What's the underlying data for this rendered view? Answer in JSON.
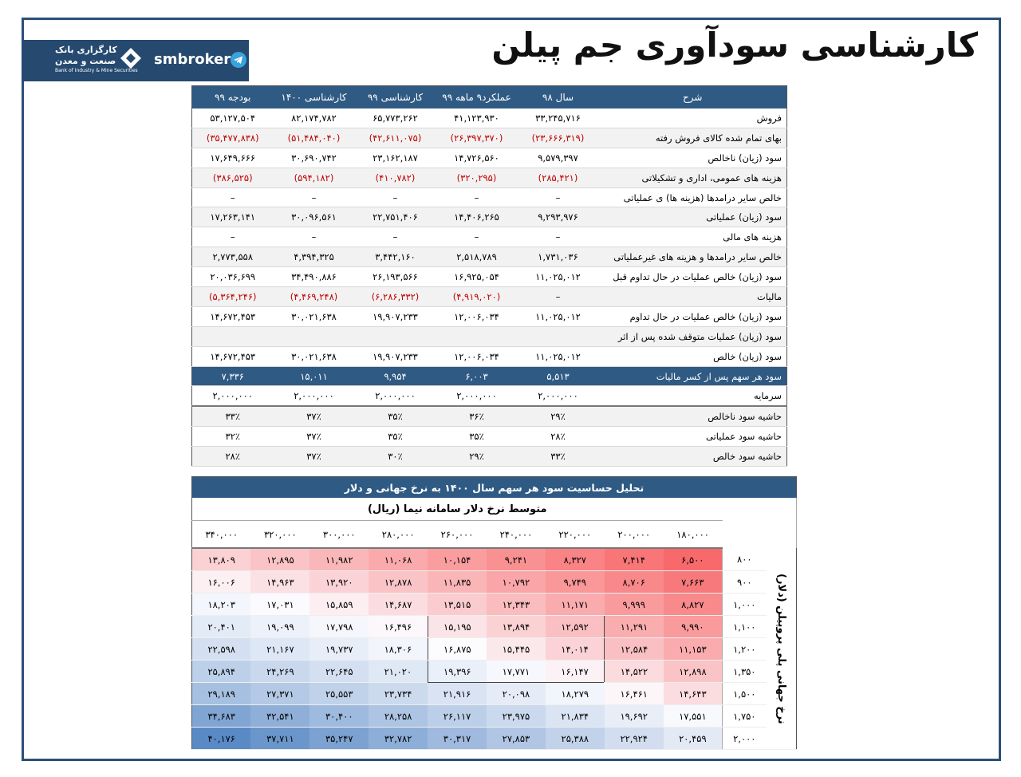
{
  "header": {
    "title": "کارشناسی سودآوری جم پیلن",
    "logo": {
      "brand": "smbroker",
      "name_top": "کارگزاری بانک",
      "name_bottom": "صنعت و معدن",
      "subtitle": "Bank of Industry & Mine Securities"
    }
  },
  "income_table": {
    "columns": [
      "شرح",
      "سال ۹۸",
      "عملکرد۹ ماهه ۹۹",
      "کارشناسی ۹۹",
      "کارشناسی ۱۴۰۰",
      "بودجه ۹۹"
    ],
    "rows": [
      {
        "label": "فروش",
        "values": [
          "۳۳,۲۴۵,۷۱۶",
          "۴۱,۱۲۳,۹۳۰",
          "۶۵,۷۷۳,۲۶۲",
          "۸۲,۱۷۴,۷۸۲",
          "۵۳,۱۲۷,۵۰۴"
        ]
      },
      {
        "label": "بهای تمام شده کالای فروش رفته",
        "values": [
          "(۲۳,۶۶۶,۳۱۹)",
          "(۲۶,۳۹۷,۳۷۰)",
          "(۴۲,۶۱۱,۰۷۵)",
          "(۵۱,۴۸۴,۰۴۰)",
          "(۳۵,۴۷۷,۸۳۸)"
        ]
      },
      {
        "label": "سود (زیان) ناخالص",
        "values": [
          "۹,۵۷۹,۳۹۷",
          "۱۴,۷۲۶,۵۶۰",
          "۲۳,۱۶۲,۱۸۷",
          "۳۰,۶۹۰,۷۴۲",
          "۱۷,۶۴۹,۶۶۶"
        ]
      },
      {
        "label": "هزینه های عمومی، اداری و تشکیلاتی",
        "values": [
          "(۲۸۵,۴۲۱)",
          "(۳۲۰,۲۹۵)",
          "(۴۱۰,۷۸۲)",
          "(۵۹۴,۱۸۲)",
          "(۳۸۶,۵۲۵)"
        ]
      },
      {
        "label": "خالص سایر درامدها (هزینه ها) ی عملیاتی",
        "values": [
          "–",
          "–",
          "–",
          "–",
          "–"
        ]
      },
      {
        "label": "سود (زیان) عملیاتی",
        "values": [
          "۹,۲۹۳,۹۷۶",
          "۱۴,۴۰۶,۲۶۵",
          "۲۲,۷۵۱,۴۰۶",
          "۳۰,۰۹۶,۵۶۱",
          "۱۷,۲۶۳,۱۴۱"
        ]
      },
      {
        "label": "هزینه های مالی",
        "values": [
          "–",
          "–",
          "–",
          "–",
          "–"
        ]
      },
      {
        "label": "خالص سایر درامدها و هزینه های غیرعملیاتی",
        "values": [
          "۱,۷۳۱,۰۳۶",
          "۲,۵۱۸,۷۸۹",
          "۳,۴۴۲,۱۶۰",
          "۴,۳۹۴,۳۲۵",
          "۲,۷۷۳,۵۵۸"
        ]
      },
      {
        "label": "سود (زیان) خالص عملیات در حال تداوم قبل",
        "values": [
          "۱۱,۰۲۵,۰۱۲",
          "۱۶,۹۲۵,۰۵۴",
          "۲۶,۱۹۳,۵۶۶",
          "۳۴,۴۹۰,۸۸۶",
          "۲۰,۰۳۶,۶۹۹"
        ]
      },
      {
        "label": "مالیات",
        "values": [
          "–",
          "(۴,۹۱۹,۰۲۰)",
          "(۶,۲۸۶,۳۳۲)",
          "(۴,۴۶۹,۲۴۸)",
          "(۵,۳۶۴,۲۴۶)"
        ]
      },
      {
        "label": "سود (زیان) خالص عملیات در حال تداوم",
        "values": [
          "۱۱,۰۲۵,۰۱۲",
          "۱۲,۰۰۶,۰۳۴",
          "۱۹,۹۰۷,۲۳۳",
          "۳۰,۰۲۱,۶۳۸",
          "۱۴,۶۷۲,۴۵۳"
        ]
      },
      {
        "label": "سود (زیان) عملیات متوقف شده پس از اثر",
        "values": []
      },
      {
        "label": "سود (زیان) خالص",
        "values": [
          "۱۱,۰۲۵,۰۱۲",
          "۱۲,۰۰۶,۰۳۴",
          "۱۹,۹۰۷,۲۳۳",
          "۳۰,۰۲۱,۶۳۸",
          "۱۴,۶۷۲,۴۵۳"
        ]
      },
      {
        "label": "سود هر سهم پس از کسر مالیات",
        "values": [
          "۵,۵۱۳",
          "۶,۰۰۳",
          "۹,۹۵۴",
          "۱۵,۰۱۱",
          "۷,۳۳۶"
        ]
      },
      {
        "label": "سرمایه",
        "values": [
          "۲,۰۰۰,۰۰۰",
          "۲,۰۰۰,۰۰۰",
          "۲,۰۰۰,۰۰۰",
          "۲,۰۰۰,۰۰۰",
          "۲,۰۰۰,۰۰۰"
        ]
      },
      {
        "label": "حاشیه سود ناخالص",
        "values": [
          "۲۹٪",
          "۳۶٪",
          "۳۵٪",
          "۳۷٪",
          "۳۳٪"
        ]
      },
      {
        "label": "حاشیه سود عملیاتی",
        "values": [
          "۲۸٪",
          "۳۵٪",
          "۳۵٪",
          "۳۷٪",
          "۳۲٪"
        ]
      },
      {
        "label": "حاشیه سود خالص",
        "values": [
          "۳۳٪",
          "۲۹٪",
          "۳۰٪",
          "۳۷٪",
          "۲۸٪"
        ]
      }
    ]
  },
  "sensitivity": {
    "title": "تحلیل حساسیت سود هر سهم سال ۱۴۰۰ به نرخ جهانی و دلار",
    "column_header": "متوسط نرخ دلار سامانه نیما (ریال)",
    "row_header": "نرخ جهانی پلی پروپیلن (دلار)",
    "columns": [
      "۱۸۰,۰۰۰",
      "۲۰۰,۰۰۰",
      "۲۲۰,۰۰۰",
      "۲۴۰,۰۰۰",
      "۲۶۰,۰۰۰",
      "۲۸۰,۰۰۰",
      "۳۰۰,۰۰۰",
      "۳۲۰,۰۰۰",
      "۳۴۰,۰۰۰"
    ],
    "rows": [
      {
        "label": "۸۰۰",
        "values": [
          "۶,۵۰۰",
          "۷,۴۱۴",
          "۸,۳۲۷",
          "۹,۲۴۱",
          "۱۰,۱۵۴",
          "۱۱,۰۶۸",
          "۱۱,۹۸۲",
          "۱۲,۸۹۵",
          "۱۳,۸۰۹"
        ]
      },
      {
        "label": "۹۰۰",
        "values": [
          "۷,۶۶۳",
          "۸,۷۰۶",
          "۹,۷۴۹",
          "۱۰,۷۹۲",
          "۱۱,۸۳۵",
          "۱۲,۸۷۸",
          "۱۳,۹۲۰",
          "۱۴,۹۶۳",
          "۱۶,۰۰۶"
        ]
      },
      {
        "label": "۱,۰۰۰",
        "values": [
          "۸,۸۲۷",
          "۹,۹۹۹",
          "۱۱,۱۷۱",
          "۱۲,۳۴۳",
          "۱۳,۵۱۵",
          "۱۴,۶۸۷",
          "۱۵,۸۵۹",
          "۱۷,۰۳۱",
          "۱۸,۲۰۳"
        ]
      },
      {
        "label": "۱,۱۰۰",
        "values": [
          "۹,۹۹۰",
          "۱۱,۲۹۱",
          "۱۲,۵۹۲",
          "۱۳,۸۹۴",
          "۱۵,۱۹۵",
          "۱۶,۴۹۶",
          "۱۷,۷۹۸",
          "۱۹,۰۹۹",
          "۲۰,۴۰۱"
        ]
      },
      {
        "label": "۱,۲۰۰",
        "values": [
          "۱۱,۱۵۳",
          "۱۲,۵۸۴",
          "۱۴,۰۱۴",
          "۱۵,۴۴۵",
          "۱۶,۸۷۵",
          "۱۸,۳۰۶",
          "۱۹,۷۳۷",
          "۲۱,۱۶۷",
          "۲۲,۵۹۸"
        ]
      },
      {
        "label": "۱,۳۵۰",
        "values": [
          "۱۲,۸۹۸",
          "۱۴,۵۲۲",
          "۱۶,۱۴۷",
          "۱۷,۷۷۱",
          "۱۹,۳۹۶",
          "۲۱,۰۲۰",
          "۲۲,۶۴۵",
          "۲۴,۲۶۹",
          "۲۵,۸۹۴"
        ]
      },
      {
        "label": "۱,۵۰۰",
        "values": [
          "۱۴,۶۴۳",
          "۱۶,۴۶۱",
          "۱۸,۲۷۹",
          "۲۰,۰۹۸",
          "۲۱,۹۱۶",
          "۲۳,۷۳۴",
          "۲۵,۵۵۳",
          "۲۷,۳۷۱",
          "۲۹,۱۸۹"
        ]
      },
      {
        "label": "۱,۷۵۰",
        "values": [
          "۱۷,۵۵۱",
          "۱۹,۶۹۲",
          "۲۱,۸۳۴",
          "۲۳,۹۷۵",
          "۲۶,۱۱۷",
          "۲۸,۲۵۸",
          "۳۰,۴۰۰",
          "۳۲,۵۴۱",
          "۳۴,۶۸۳"
        ]
      },
      {
        "label": "۲,۰۰۰",
        "values": [
          "۲۰,۴۵۹",
          "۲۲,۹۲۴",
          "۲۵,۳۸۸",
          "۲۷,۸۵۳",
          "۳۰,۳۱۷",
          "۳۲,۷۸۲",
          "۳۵,۲۴۷",
          "۳۷,۷۱۱",
          "۴۰,۱۷۶"
        ]
      }
    ]
  }
}
